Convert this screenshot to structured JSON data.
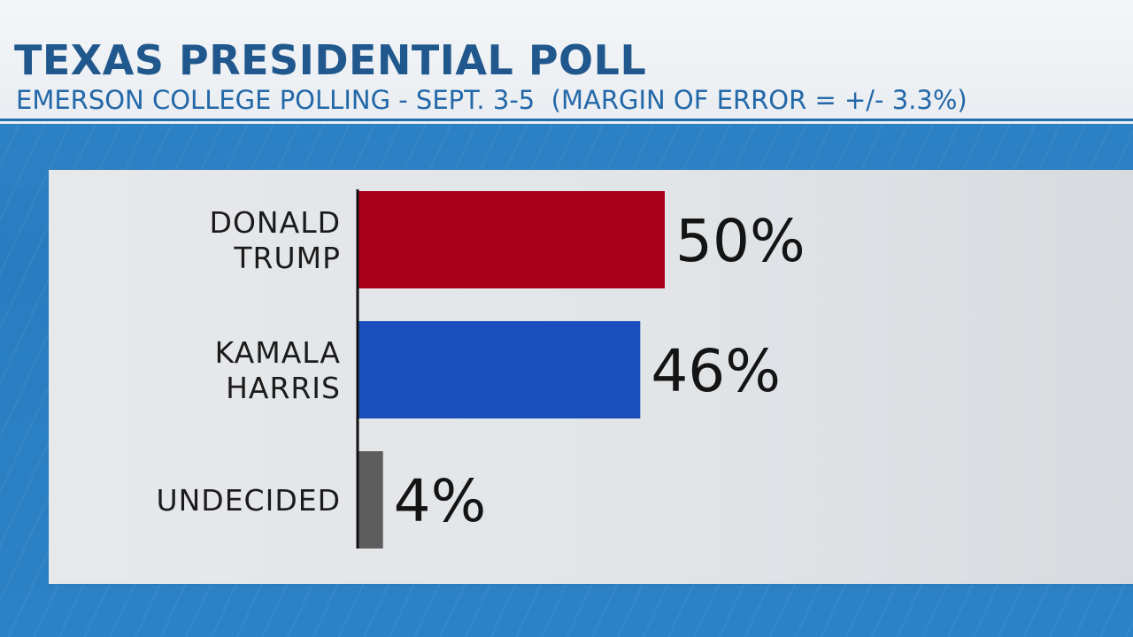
{
  "header": {
    "title": "TEXAS PRESIDENTIAL POLL",
    "subtitle": "EMERSON COLLEGE POLLING - SEPT. 3-5  (MARGIN OF ERROR = +/- 3.3%)"
  },
  "colors": {
    "trump_red": "#a8001a",
    "harris_blue": "#1a4fbd",
    "undecided_gray": "#5d5d5d",
    "title_blue": "#20588e"
  },
  "chart_data": {
    "type": "bar",
    "orientation": "horizontal",
    "categories": [
      [
        "DONALD",
        "TRUMP"
      ],
      [
        "KAMALA",
        "HARRIS"
      ],
      [
        "UNDECIDED"
      ]
    ],
    "values": [
      50,
      46,
      4
    ],
    "value_labels": [
      "50%",
      "46%",
      "4%"
    ],
    "colors": [
      "#a8001a",
      "#1a4fbd",
      "#5d5d5d"
    ],
    "unit": "%",
    "xlim": [
      0,
      100
    ],
    "grid": false,
    "legend": "none"
  }
}
